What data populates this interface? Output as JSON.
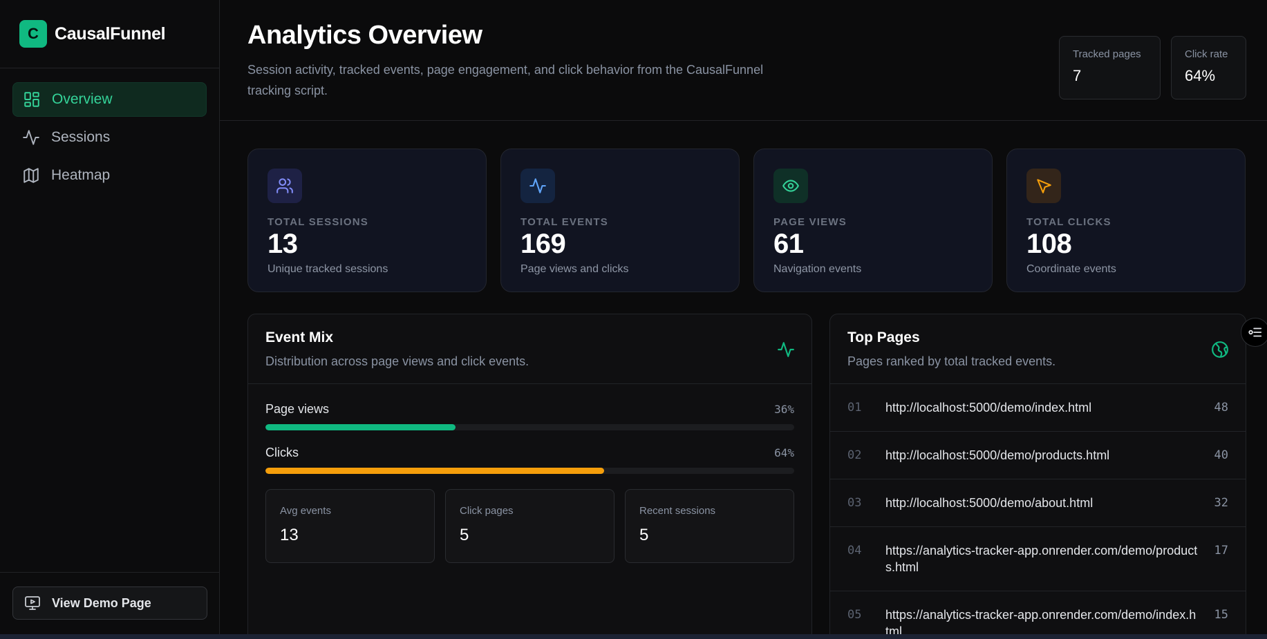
{
  "brand": {
    "logo_letter": "C",
    "name": "CausalFunnel"
  },
  "nav": [
    {
      "label": "Overview",
      "icon": "layout-grid-icon",
      "active": true
    },
    {
      "label": "Sessions",
      "icon": "activity-icon",
      "active": false
    },
    {
      "label": "Heatmap",
      "icon": "map-icon",
      "active": false
    }
  ],
  "footer": {
    "demo_label": "View Demo Page"
  },
  "header": {
    "title": "Analytics Overview",
    "subtitle": "Session activity, tracked events, page engagement, and click behavior from the CausalFunnel tracking script.",
    "tracked_pages_label": "Tracked pages",
    "tracked_pages_value": "7",
    "click_rate_label": "Click rate",
    "click_rate_value": "64%"
  },
  "stats": [
    {
      "label": "TOTAL SESSIONS",
      "value": "13",
      "desc": "Unique tracked sessions",
      "icon": "users-icon",
      "color": "#818cf8",
      "bg": "#1e2145"
    },
    {
      "label": "TOTAL EVENTS",
      "value": "169",
      "desc": "Page views and clicks",
      "icon": "activity-icon",
      "color": "#60a5fa",
      "bg": "#142440"
    },
    {
      "label": "PAGE VIEWS",
      "value": "61",
      "desc": "Navigation events",
      "icon": "eye-icon",
      "color": "#34d399",
      "bg": "#0f3027"
    },
    {
      "label": "TOTAL CLICKS",
      "value": "108",
      "desc": "Coordinate events",
      "icon": "pointer-icon",
      "color": "#f59e0b",
      "bg": "#33251a"
    }
  ],
  "event_mix": {
    "title": "Event Mix",
    "subtitle": "Distribution across page views and click events.",
    "bars": [
      {
        "label": "Page views",
        "pct_text": "36%",
        "fraction": 0.36,
        "color": "#10b981"
      },
      {
        "label": "Clicks",
        "pct_text": "64%",
        "fraction": 0.64,
        "color": "#f59e0b"
      }
    ],
    "avg_events_label": "Avg events",
    "avg_events_value": "13",
    "click_pages_label": "Click pages",
    "click_pages_value": "5",
    "recent_sessions_label": "Recent sessions",
    "recent_sessions_value": "5"
  },
  "top_pages": {
    "title": "Top Pages",
    "subtitle": "Pages ranked by total tracked events.",
    "rows": [
      {
        "rank": "01",
        "url": "http://localhost:5000/demo/index.html",
        "count": "48"
      },
      {
        "rank": "02",
        "url": "http://localhost:5000/demo/products.html",
        "count": "40"
      },
      {
        "rank": "03",
        "url": "http://localhost:5000/demo/about.html",
        "count": "32"
      },
      {
        "rank": "04",
        "url": "https://analytics-tracker-app.onrender.com/demo/products.html",
        "count": "17"
      },
      {
        "rank": "05",
        "url": "https://analytics-tracker-app.onrender.com/demo/index.html",
        "count": "15"
      }
    ]
  }
}
